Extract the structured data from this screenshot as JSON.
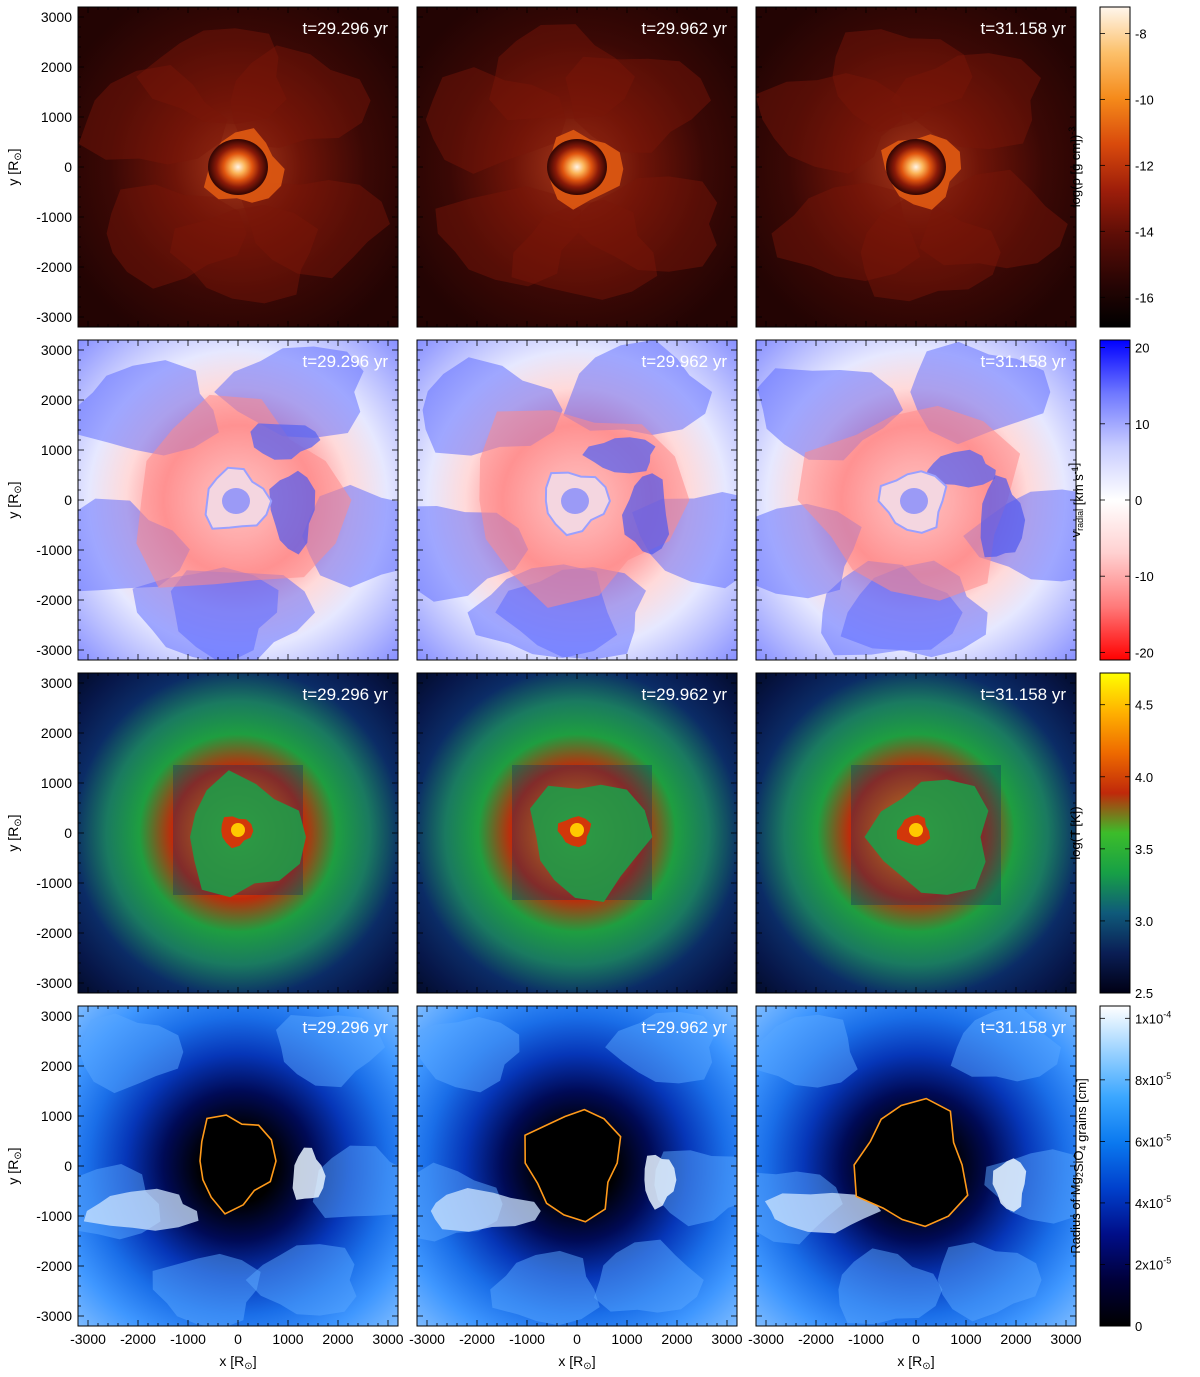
{
  "figure": {
    "times": [
      "t=29.296 yr",
      "t=29.962 yr",
      "t=31.158 yr"
    ],
    "xlabel": "x [R",
    "ylabel": "y [R",
    "solar_symbol": "⊙",
    "axis_ticks": [
      "-3000",
      "-2000",
      "-1000",
      "0",
      "1000",
      "2000",
      "3000"
    ]
  },
  "chart_data": [
    {
      "type": "heatmap",
      "quantity": "density",
      "colorbar_label": "log(ρ [g cm",
      "colorbar_label_sup": "-3",
      "colorbar_label_end": "])",
      "colorbar_ticks": [
        "-8",
        "-10",
        "-12",
        "-14",
        "-16"
      ],
      "colorbar_tick_values": [
        -8,
        -10,
        -12,
        -14,
        -16
      ],
      "colorbar_range": [
        -16.9,
        -7.2
      ],
      "colormap": [
        "#000000",
        "#2a0504",
        "#5c0d06",
        "#9e1e0a",
        "#d94a0c",
        "#f58a1a",
        "#fcc06a",
        "#fff6ec"
      ],
      "x": [
        -3000,
        -2000,
        -1000,
        0,
        1000,
        2000,
        3000
      ],
      "y": [
        -3000,
        -2000,
        -1000,
        0,
        1000,
        2000,
        3000
      ],
      "xlim": [
        -3200,
        3200
      ],
      "ylim": [
        -3200,
        3200
      ]
    },
    {
      "type": "heatmap",
      "quantity": "radial velocity",
      "colorbar_label": "v",
      "colorbar_label_sub": "radial",
      "colorbar_label_end": " [km s",
      "colorbar_label_sup": "-1",
      "colorbar_label_close": "]",
      "colorbar_ticks": [
        "20",
        "10",
        "0",
        "-10",
        "-20"
      ],
      "colorbar_tick_values": [
        20,
        10,
        0,
        -10,
        -20
      ],
      "colorbar_range": [
        -21,
        21
      ],
      "colormap": [
        "#ff0000",
        "#ff7a7a",
        "#ffd0d0",
        "#ffffff",
        "#c8ccff",
        "#6f78ff",
        "#0000ff"
      ],
      "x": [
        -3000,
        -2000,
        -1000,
        0,
        1000,
        2000,
        3000
      ],
      "y": [
        -3000,
        -2000,
        -1000,
        0,
        1000,
        2000,
        3000
      ],
      "xlim": [
        -3200,
        3200
      ],
      "ylim": [
        -3200,
        3200
      ]
    },
    {
      "type": "heatmap",
      "quantity": "temperature",
      "colorbar_label": "log(T [K])",
      "colorbar_ticks": [
        "4.5",
        "4.0",
        "3.5",
        "3.0",
        "2.5"
      ],
      "colorbar_tick_values": [
        4.5,
        4.0,
        3.5,
        3.0,
        2.5
      ],
      "colorbar_range": [
        2.5,
        4.72
      ],
      "colormap": [
        "#000015",
        "#0a1e55",
        "#0f5a7a",
        "#17a046",
        "#3cbd2a",
        "#c0290a",
        "#ee6a00",
        "#ffb000",
        "#ffff00"
      ],
      "x": [
        -3000,
        -2000,
        -1000,
        0,
        1000,
        2000,
        3000
      ],
      "y": [
        -3000,
        -2000,
        -1000,
        0,
        1000,
        2000,
        3000
      ],
      "xlim": [
        -3200,
        3200
      ],
      "ylim": [
        -3200,
        3200
      ]
    },
    {
      "type": "heatmap",
      "quantity": "grain radius",
      "colorbar_label": "Radius of Mg",
      "colorbar_label_sub": "2",
      "colorbar_label_mid": "SiO",
      "colorbar_label_sub2": "4",
      "colorbar_label_end": " grains [cm]",
      "colorbar_ticks": [
        "1x10",
        "8x10",
        "6x10",
        "4x10",
        "2x10",
        "0"
      ],
      "colorbar_tick_sups": [
        "-4",
        "-5",
        "-5",
        "-5",
        "-5",
        ""
      ],
      "colorbar_tick_values": [
        0.0001,
        8e-05,
        6e-05,
        4e-05,
        2e-05,
        0
      ],
      "colorbar_range": [
        0,
        0.000104
      ],
      "colormap": [
        "#000000",
        "#00003a",
        "#000e88",
        "#0040cc",
        "#0a78ef",
        "#3aa6ff",
        "#9ad2ff",
        "#ffffff"
      ],
      "x": [
        -3000,
        -2000,
        -1000,
        0,
        1000,
        2000,
        3000
      ],
      "y": [
        -3000,
        -2000,
        -1000,
        0,
        1000,
        2000,
        3000
      ],
      "xlim": [
        -3200,
        3200
      ],
      "ylim": [
        -3200,
        3200
      ]
    }
  ]
}
